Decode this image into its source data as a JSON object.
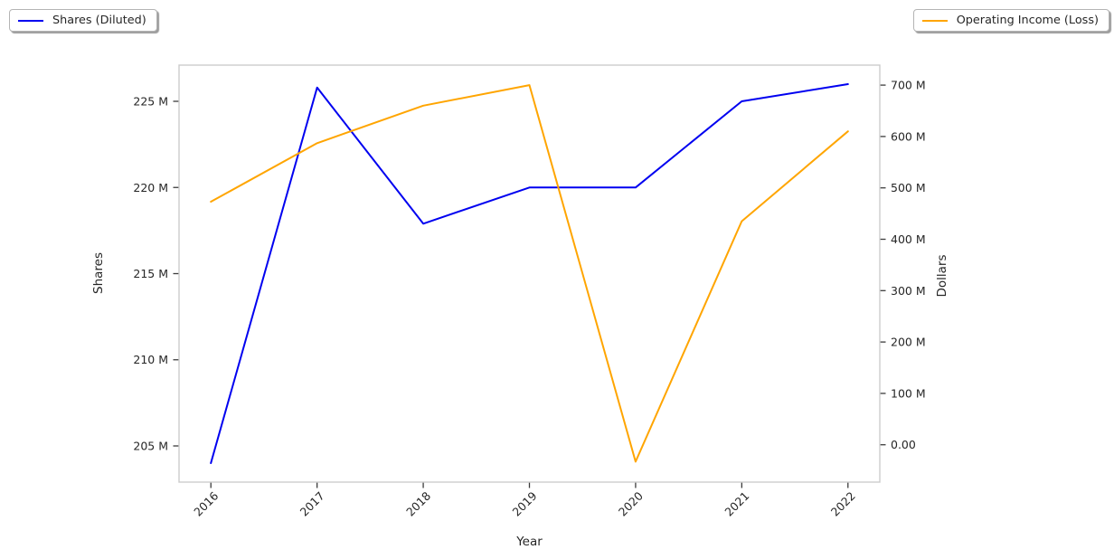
{
  "chart_data": {
    "type": "line",
    "title": "",
    "xlabel": "Year",
    "x": [
      2016,
      2017,
      2018,
      2019,
      2020,
      2021,
      2022
    ],
    "x_tick_labels": [
      "2016",
      "2017",
      "2018",
      "2019",
      "2020",
      "2021",
      "2022"
    ],
    "xlim": [
      2015.7,
      2022.3
    ],
    "grid": false,
    "series": [
      {
        "name": "Shares (Diluted)",
        "color": "#0000f0",
        "y_axis": "left",
        "unit": "millions",
        "values": [
          204.0,
          225.8,
          217.9,
          220.0,
          220.0,
          225.0,
          226.0
        ]
      },
      {
        "name": "Operating Income (Loss)",
        "color": "#ffa500",
        "y_axis": "right",
        "unit": "millions",
        "values": [
          473,
          587,
          660,
          700,
          -33,
          435,
          610
        ]
      }
    ],
    "left_axis": {
      "label": "Shares",
      "ylim": [
        202.9,
        227.1
      ],
      "ticks": [
        {
          "value": 225,
          "label": "225 M"
        },
        {
          "value": 220,
          "label": "220 M"
        },
        {
          "value": 215,
          "label": "215 M"
        },
        {
          "value": 210,
          "label": "210 M"
        },
        {
          "value": 205,
          "label": "205 M"
        }
      ]
    },
    "right_axis": {
      "label": "Dollars",
      "ylim": [
        -72.7,
        738.9
      ],
      "ticks": [
        {
          "value": 700,
          "label": "700 M"
        },
        {
          "value": 600,
          "label": "600 M"
        },
        {
          "value": 500,
          "label": "500 M"
        },
        {
          "value": 400,
          "label": "400 M"
        },
        {
          "value": 300,
          "label": "300 M"
        },
        {
          "value": 200,
          "label": "200 M"
        },
        {
          "value": 100,
          "label": "100 M"
        },
        {
          "value": 0,
          "label": "0.00"
        }
      ]
    },
    "legend": {
      "positions": [
        "upper-left-outside",
        "upper-right-outside"
      ]
    }
  },
  "colors": {
    "spine": "#cccccc",
    "tick_text": "#262626",
    "tick_mark": "#3c3c3c",
    "background": "#ffffff"
  }
}
